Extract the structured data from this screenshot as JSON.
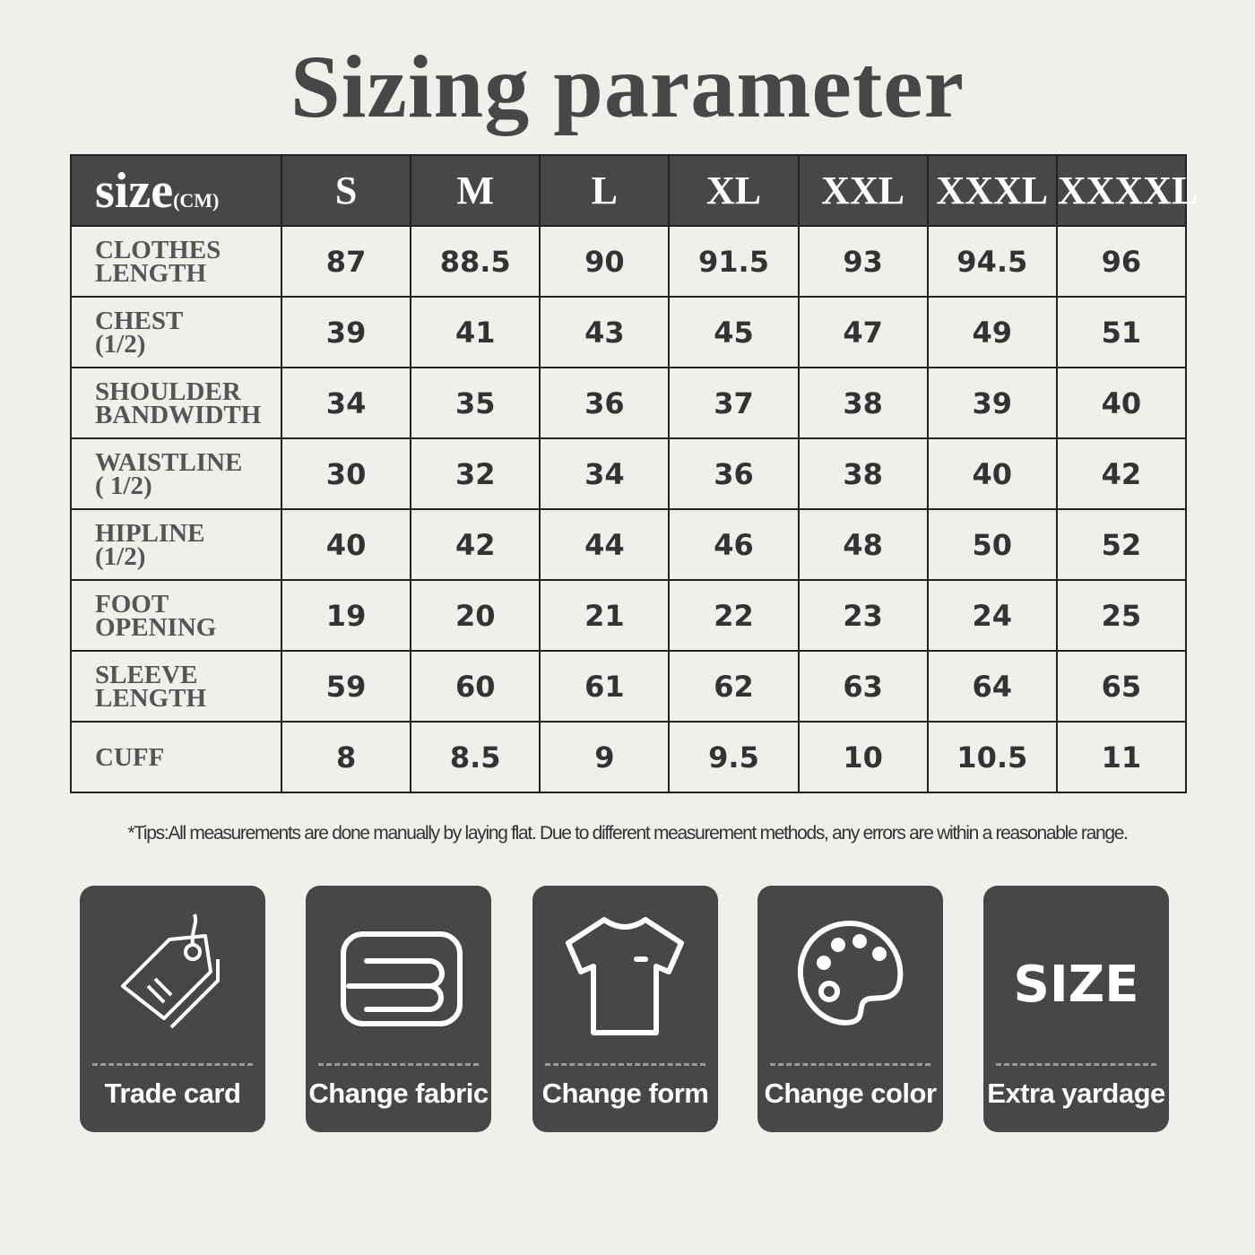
{
  "title": "Sizing parameter",
  "table": {
    "corner_label": "size",
    "corner_unit": "(CM)",
    "sizes": [
      "S",
      "M",
      "L",
      "XL",
      "XXL",
      "XXXL",
      "XXXXL"
    ],
    "rows": [
      {
        "label_lines": [
          "CLOTHES",
          "LENGTH"
        ],
        "values": [
          "87",
          "88.5",
          "90",
          "91.5",
          "93",
          "94.5",
          "96"
        ]
      },
      {
        "label_lines": [
          "CHEST",
          "(1/2)"
        ],
        "values": [
          "39",
          "41",
          "43",
          "45",
          "47",
          "49",
          "51"
        ]
      },
      {
        "label_lines": [
          "SHOULDER",
          "BANDWIDTH"
        ],
        "values": [
          "34",
          "35",
          "36",
          "37",
          "38",
          "39",
          "40"
        ]
      },
      {
        "label_lines": [
          "WAISTLINE",
          "( 1/2)"
        ],
        "values": [
          "30",
          "32",
          "34",
          "36",
          "38",
          "40",
          "42"
        ]
      },
      {
        "label_lines": [
          "HIPLINE",
          "(1/2)"
        ],
        "values": [
          "40",
          "42",
          "44",
          "46",
          "48",
          "50",
          "52"
        ]
      },
      {
        "label_lines": [
          "FOOT",
          "OPENING"
        ],
        "values": [
          "19",
          "20",
          "21",
          "22",
          "23",
          "24",
          "25"
        ]
      },
      {
        "label_lines": [
          "SLEEVE",
          "LENGTH"
        ],
        "values": [
          "59",
          "60",
          "61",
          "62",
          "63",
          "64",
          "65"
        ]
      },
      {
        "label_lines": [
          "CUFF"
        ],
        "values": [
          "8",
          "8.5",
          "9",
          "9.5",
          "10",
          "10.5",
          "11"
        ]
      }
    ]
  },
  "tips": "*Tips:All measurements are done manually by laying flat. Due to different measurement methods, any errors are within a reasonable range.",
  "cards": [
    {
      "label": "Trade card",
      "icon": "tag-icon"
    },
    {
      "label": "Change fabric",
      "icon": "fabric-icon"
    },
    {
      "label": "Change form",
      "icon": "tshirt-icon"
    },
    {
      "label": "Change color",
      "icon": "palette-icon"
    },
    {
      "label": "Extra yardage",
      "icon": "size-icon",
      "icon_text": "SIZE"
    }
  ],
  "colors": {
    "background": "#f0efeb",
    "dark": "#474747"
  }
}
